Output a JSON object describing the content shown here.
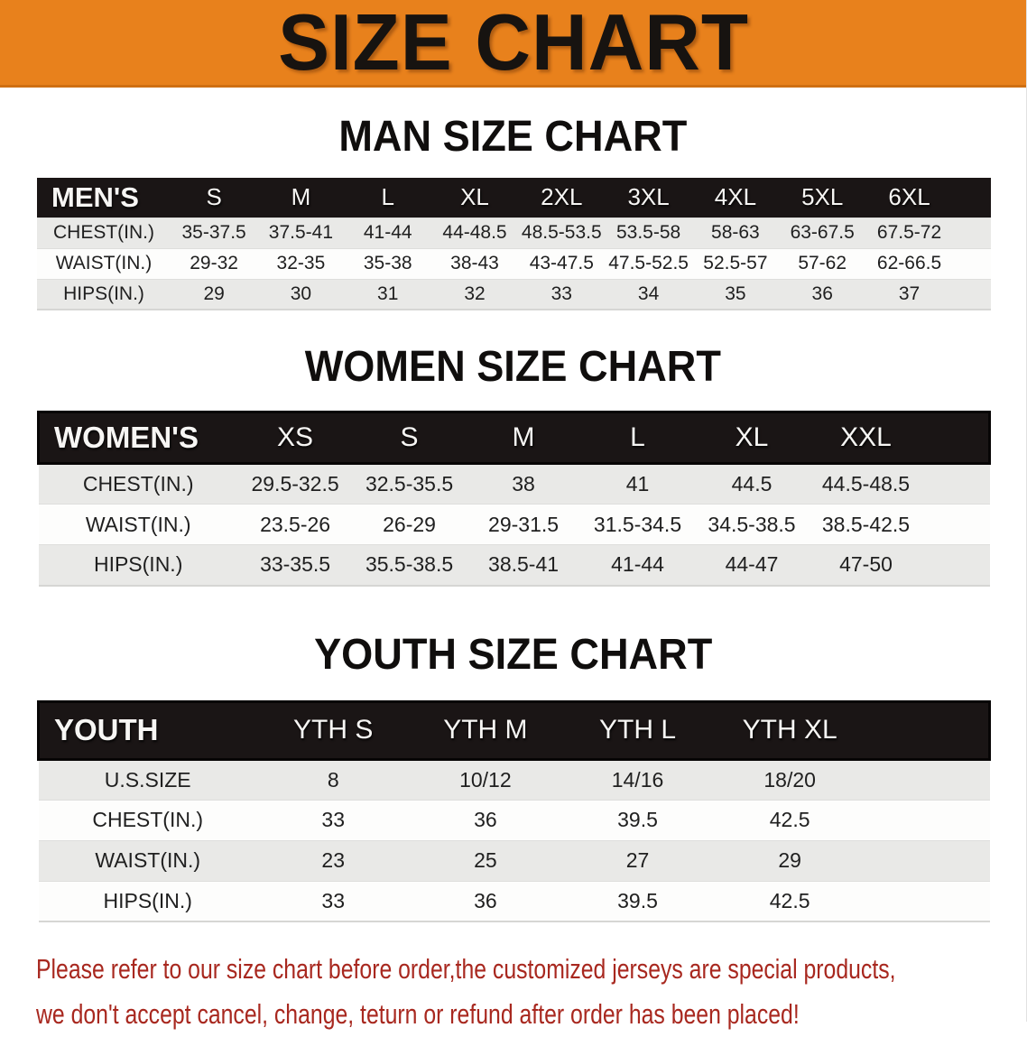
{
  "theme": {
    "banner_bg": "#E8811C",
    "header_bg": "#1A1515",
    "row_alt": "#E9E9E7",
    "disclaimer_color": "#A8281F"
  },
  "banner": {
    "title": "SIZE CHART"
  },
  "sections": [
    {
      "heading": "MAN SIZE CHART",
      "label": "MEN'S",
      "columns": [
        "S",
        "M",
        "L",
        "XL",
        "2XL",
        "3XL",
        "4XL",
        "5XL",
        "6XL"
      ],
      "rows": [
        {
          "label": "CHEST(IN.)",
          "values": [
            "35-37.5",
            "37.5-41",
            "41-44",
            "44-48.5",
            "48.5-53.5",
            "53.5-58",
            "58-63",
            "63-67.5",
            "67.5-72"
          ]
        },
        {
          "label": "WAIST(IN.)",
          "values": [
            "29-32",
            "32-35",
            "35-38",
            "38-43",
            "43-47.5",
            "47.5-52.5",
            "52.5-57",
            "57-62",
            "62-66.5"
          ]
        },
        {
          "label": "HIPS(IN.)",
          "values": [
            "29",
            "30",
            "31",
            "32",
            "33",
            "34",
            "35",
            "36",
            "37"
          ]
        }
      ]
    },
    {
      "heading": "WOMEN SIZE CHART",
      "label": "WOMEN'S",
      "columns": [
        "XS",
        "S",
        "M",
        "L",
        "XL",
        "XXL"
      ],
      "rows": [
        {
          "label": "CHEST(IN.)",
          "values": [
            "29.5-32.5",
            "32.5-35.5",
            "38",
            "41",
            "44.5",
            "44.5-48.5"
          ]
        },
        {
          "label": "WAIST(IN.)",
          "values": [
            "23.5-26",
            "26-29",
            "29-31.5",
            "31.5-34.5",
            "34.5-38.5",
            "38.5-42.5"
          ]
        },
        {
          "label": "HIPS(IN.)",
          "values": [
            "33-35.5",
            "35.5-38.5",
            "38.5-41",
            "41-44",
            "44-47",
            "47-50"
          ]
        }
      ]
    },
    {
      "heading": "YOUTH SIZE CHART",
      "label": "YOUTH",
      "columns": [
        "YTH S",
        "YTH M",
        "YTH L",
        "YTH XL"
      ],
      "rows": [
        {
          "label": "U.S.SIZE",
          "values": [
            "8",
            "10/12",
            "14/16",
            "18/20"
          ]
        },
        {
          "label": "CHEST(IN.)",
          "values": [
            "33",
            "36",
            "39.5",
            "42.5"
          ]
        },
        {
          "label": "WAIST(IN.)",
          "values": [
            "23",
            "25",
            "27",
            "29"
          ]
        },
        {
          "label": "HIPS(IN.)",
          "values": [
            "33",
            "36",
            "39.5",
            "42.5"
          ]
        }
      ]
    }
  ],
  "disclaimer": {
    "line1": "Please refer to our size chart before order,the customized jerseys are special products,",
    "line2": "we don't accept cancel, change, teturn or refund after order has been placed!"
  }
}
